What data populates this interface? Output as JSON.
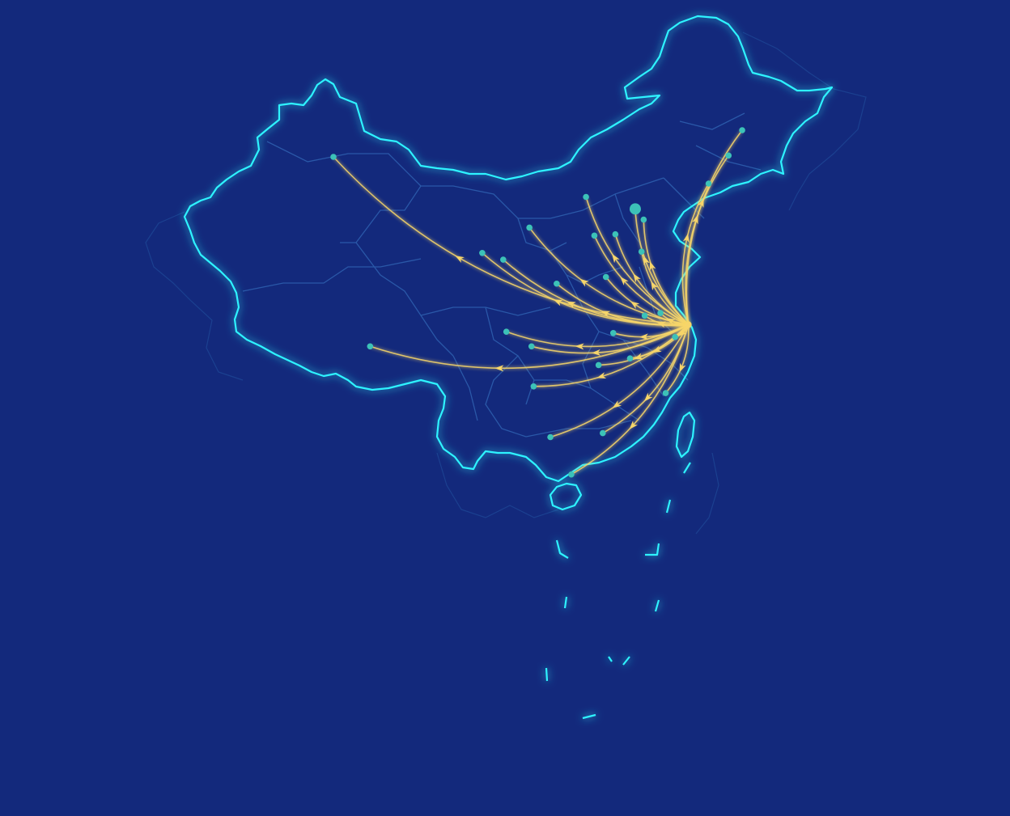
{
  "colors": {
    "background": "#13297c",
    "border": "#2ef3ff",
    "province_line": "#2a58a8",
    "flow_line": "#f6d56a",
    "city_dot": "#3cc2b8"
  },
  "hub": {
    "name": "",
    "lon": 121.47,
    "lat": 31.23
  },
  "origins": [
    {
      "lon": 87.6,
      "lat": 43.8,
      "size": "normal"
    },
    {
      "lon": 91.1,
      "lat": 29.6,
      "size": "normal"
    },
    {
      "lon": 101.8,
      "lat": 36.6,
      "size": "normal"
    },
    {
      "lon": 103.8,
      "lat": 36.1,
      "size": "normal"
    },
    {
      "lon": 106.3,
      "lat": 38.5,
      "size": "normal"
    },
    {
      "lon": 111.7,
      "lat": 40.8,
      "size": "normal"
    },
    {
      "lon": 108.9,
      "lat": 34.3,
      "size": "normal"
    },
    {
      "lon": 112.5,
      "lat": 37.9,
      "size": "normal"
    },
    {
      "lon": 114.5,
      "lat": 38.0,
      "size": "normal"
    },
    {
      "lon": 116.4,
      "lat": 39.9,
      "size": "large"
    },
    {
      "lon": 117.2,
      "lat": 39.1,
      "size": "normal"
    },
    {
      "lon": 123.4,
      "lat": 41.8,
      "size": "normal"
    },
    {
      "lon": 125.3,
      "lat": 43.9,
      "size": "normal"
    },
    {
      "lon": 126.6,
      "lat": 45.8,
      "size": "normal"
    },
    {
      "lon": 117.0,
      "lat": 36.7,
      "size": "normal"
    },
    {
      "lon": 113.6,
      "lat": 34.8,
      "size": "normal"
    },
    {
      "lon": 104.1,
      "lat": 30.7,
      "size": "normal"
    },
    {
      "lon": 106.5,
      "lat": 29.6,
      "size": "normal"
    },
    {
      "lon": 114.3,
      "lat": 30.6,
      "size": "normal"
    },
    {
      "lon": 117.3,
      "lat": 31.9,
      "size": "normal"
    },
    {
      "lon": 118.8,
      "lat": 32.1,
      "size": "normal"
    },
    {
      "lon": 120.2,
      "lat": 30.3,
      "size": "normal"
    },
    {
      "lon": 112.9,
      "lat": 28.2,
      "size": "normal"
    },
    {
      "lon": 115.9,
      "lat": 28.7,
      "size": "normal"
    },
    {
      "lon": 119.3,
      "lat": 26.1,
      "size": "normal"
    },
    {
      "lon": 106.7,
      "lat": 26.6,
      "size": "normal"
    },
    {
      "lon": 108.3,
      "lat": 22.8,
      "size": "normal"
    },
    {
      "lon": 113.3,
      "lat": 23.1,
      "size": "normal"
    },
    {
      "lon": 110.3,
      "lat": 20.0,
      "size": "normal"
    }
  ]
}
